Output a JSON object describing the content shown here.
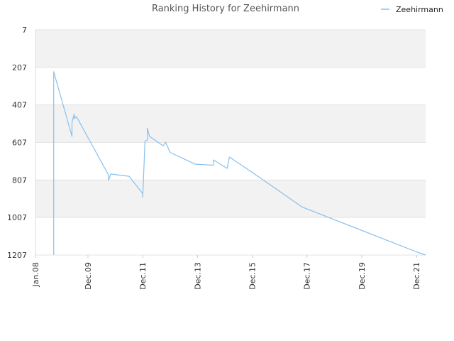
{
  "chart_data": {
    "type": "line",
    "title": "Ranking History for Zeehirmann",
    "xlabel": "",
    "ylabel": "",
    "legend_position": "top-right",
    "grid": true,
    "y_inverted": true,
    "ylim": [
      7,
      1207
    ],
    "xlim": [
      "2008-01",
      "2022-04"
    ],
    "y_ticks": [
      "7",
      "207",
      "407",
      "607",
      "807",
      "1007",
      "1207"
    ],
    "x_ticks": [
      {
        "label": "Jan.08",
        "date": "2008-01"
      },
      {
        "label": "Dec.09",
        "date": "2009-12"
      },
      {
        "label": "Dec.11",
        "date": "2011-12"
      },
      {
        "label": "Dec.13",
        "date": "2013-12"
      },
      {
        "label": "Dec.15",
        "date": "2015-12"
      },
      {
        "label": "Dec.17",
        "date": "2017-12"
      },
      {
        "label": "Dec.19",
        "date": "2019-12"
      },
      {
        "label": "Dec.21",
        "date": "2021-12"
      }
    ],
    "series": [
      {
        "name": "Zeehirmann",
        "color": "#88c0ee",
        "points": [
          {
            "x": "2008-09",
            "y": 1207
          },
          {
            "x": "2008-09",
            "y": 230
          },
          {
            "x": "2009-05",
            "y": 575
          },
          {
            "x": "2009-05",
            "y": 500
          },
          {
            "x": "2009-06",
            "y": 455
          },
          {
            "x": "2009-06",
            "y": 480
          },
          {
            "x": "2009-07",
            "y": 470
          },
          {
            "x": "2010-09",
            "y": 780
          },
          {
            "x": "2010-09",
            "y": 810
          },
          {
            "x": "2010-10",
            "y": 775
          },
          {
            "x": "2011-06",
            "y": 787
          },
          {
            "x": "2011-12",
            "y": 880
          },
          {
            "x": "2011-12",
            "y": 900
          },
          {
            "x": "2012-01",
            "y": 600
          },
          {
            "x": "2012-02",
            "y": 595
          },
          {
            "x": "2012-02",
            "y": 530
          },
          {
            "x": "2012-03",
            "y": 575
          },
          {
            "x": "2012-09",
            "y": 625
          },
          {
            "x": "2012-10",
            "y": 605
          },
          {
            "x": "2012-12",
            "y": 660
          },
          {
            "x": "2013-11",
            "y": 723
          },
          {
            "x": "2014-07",
            "y": 728
          },
          {
            "x": "2014-07",
            "y": 700
          },
          {
            "x": "2015-01",
            "y": 745
          },
          {
            "x": "2015-02",
            "y": 685
          },
          {
            "x": "2016-01",
            "y": 775
          },
          {
            "x": "2017-10",
            "y": 952
          },
          {
            "x": "2021-12",
            "y": 1190
          },
          {
            "x": "2022-04",
            "y": 1207
          }
        ]
      }
    ]
  }
}
